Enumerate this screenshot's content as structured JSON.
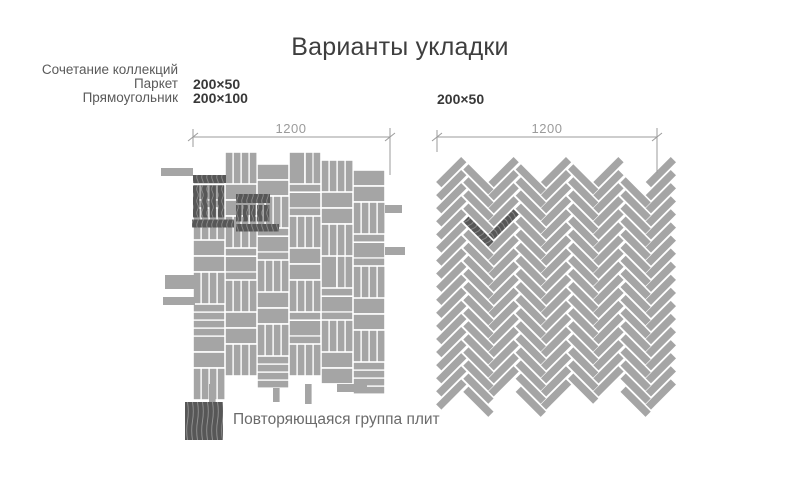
{
  "title": "Варианты укладки",
  "labels": {
    "collection": "Сочетание коллекций",
    "parquet": "Паркет",
    "rectangle": "Прямоугольник"
  },
  "sizes": {
    "left_parquet": "200×50",
    "left_rectangle": "200×100",
    "right": "200×50"
  },
  "dimensions": {
    "left_span": "1200",
    "right_span": "1200"
  },
  "legend": {
    "label": "Повторяющаяся группа плит"
  },
  "patterns": {
    "left_type": "mixed-parquet-basketweave",
    "right_type": "herringbone-45deg",
    "tile_unit_mm": {
      "strip": "200×50",
      "rect": "200×100"
    }
  },
  "colors": {
    "background": "#ffffff",
    "tile": "#a5a5a5",
    "tile_dark": "#575757",
    "grain_line": "#939393",
    "dimension": "#9b9b9b",
    "title_text": "#3e3e3e",
    "label_text": "#5a5a5a",
    "bold_text": "#383838",
    "legend_text": "#6b6b6b"
  }
}
